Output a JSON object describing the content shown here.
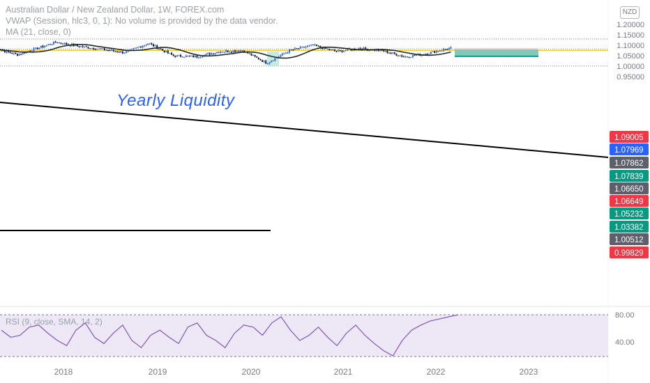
{
  "legend": {
    "title": "Australian Dollar / New Zealand Dollar, 1W, FOREX.com",
    "vwap": "VWAP (Session, hlc3, 0, 1): No volume is provided by the data vendor.",
    "ma": "MA (21, close, 0)"
  },
  "currency_badge": "NZD",
  "annotation": "Yearly Liquidity",
  "rsi_legend": "RSI (9, close, SMA, 14, 2)",
  "colors": {
    "up_candle": "#2962ff",
    "down_candle": "#131722",
    "ma_line": "#1b2a24",
    "trendline": "#000000",
    "rsi_line": "#7e57c2",
    "rsi_band": "#ede7f6",
    "price_label_red": "#f23645",
    "price_label_blue": "#2962ff",
    "price_label_green": "#089981",
    "price_label_gray": "#5d606b",
    "target_zone": "#7fcbb8",
    "stop_zone": "#f7d1d3"
  },
  "chart_data": [
    {
      "type": "candlestick",
      "title": "Australian Dollar / New Zealand Dollar, 1W, FOREX.com",
      "interval": "1W",
      "x_ticks": [
        "2018",
        "2019",
        "2020",
        "2021",
        "2022",
        "2023"
      ],
      "y_ticks": [
        1.2,
        1.15,
        1.1,
        1.05,
        1.0,
        0.95
      ],
      "y_tick_labels": [
        "1.20000",
        "1.15000",
        "1.10000",
        "1.05000",
        "1.00000",
        "0.95000"
      ],
      "ylim": [
        0.925,
        1.215
      ],
      "grid": "off",
      "approx_close_path": [
        {
          "date": "2017-04",
          "close": 1.085
        },
        {
          "date": "2017-07",
          "close": 1.055
        },
        {
          "date": "2017-10",
          "close": 1.09
        },
        {
          "date": "2017-12",
          "close": 1.115
        },
        {
          "date": "2018-03",
          "close": 1.095
        },
        {
          "date": "2018-06",
          "close": 1.08
        },
        {
          "date": "2018-09",
          "close": 1.065
        },
        {
          "date": "2018-12",
          "close": 1.11
        },
        {
          "date": "2019-03",
          "close": 1.05
        },
        {
          "date": "2019-06",
          "close": 1.045
        },
        {
          "date": "2019-09",
          "close": 1.07
        },
        {
          "date": "2019-12",
          "close": 1.075
        },
        {
          "date": "2020-03",
          "close": 1.015
        },
        {
          "date": "2020-06",
          "close": 1.075
        },
        {
          "date": "2020-09",
          "close": 1.1
        },
        {
          "date": "2020-12",
          "close": 1.07
        },
        {
          "date": "2021-03",
          "close": 1.085
        },
        {
          "date": "2021-06",
          "close": 1.075
        },
        {
          "date": "2021-09",
          "close": 1.045
        },
        {
          "date": "2021-11",
          "close": 1.055
        },
        {
          "date": "2022-03",
          "close": 1.087
        }
      ],
      "moving_average": {
        "name": "MA (21, close, 0)"
      },
      "horizontal_levels": [
        1.1298,
        1.0817,
        1.0753,
        1.0004
      ],
      "price_labels": [
        {
          "value": "1.09005",
          "style": "red"
        },
        {
          "value": "1.07969",
          "style": "blue"
        },
        {
          "value": "1.07862",
          "style": "gray"
        },
        {
          "value": "1.07839",
          "style": "green"
        },
        {
          "value": "1.06650",
          "style": "gray"
        },
        {
          "value": "1.06649",
          "style": "red"
        },
        {
          "value": "1.05232",
          "style": "green"
        },
        {
          "value": "1.03382",
          "style": "green"
        },
        {
          "value": "1.00512",
          "style": "gray"
        },
        {
          "value": "0.99829",
          "style": "red"
        }
      ],
      "annotations": [
        "Yearly Liquidity"
      ],
      "position_tool": {
        "entry": 1.08,
        "stop": 1.087,
        "target": 1.047
      }
    },
    {
      "type": "line",
      "title": "RSI (9, close, SMA, 14, 2)",
      "y_tick_labels": [
        "80.00",
        "40.00"
      ],
      "band": [
        30,
        70
      ],
      "approx_values": [
        55,
        48,
        50,
        58,
        60,
        52,
        45,
        40,
        55,
        62,
        48,
        42,
        52,
        60,
        45,
        38,
        50,
        55,
        48,
        42,
        58,
        62,
        50,
        45,
        38,
        52,
        60,
        58,
        50,
        62,
        68,
        55,
        45,
        50,
        58,
        48,
        40,
        52,
        60,
        50,
        42,
        35,
        30,
        45,
        55,
        60,
        64,
        66,
        68,
        70
      ]
    }
  ]
}
